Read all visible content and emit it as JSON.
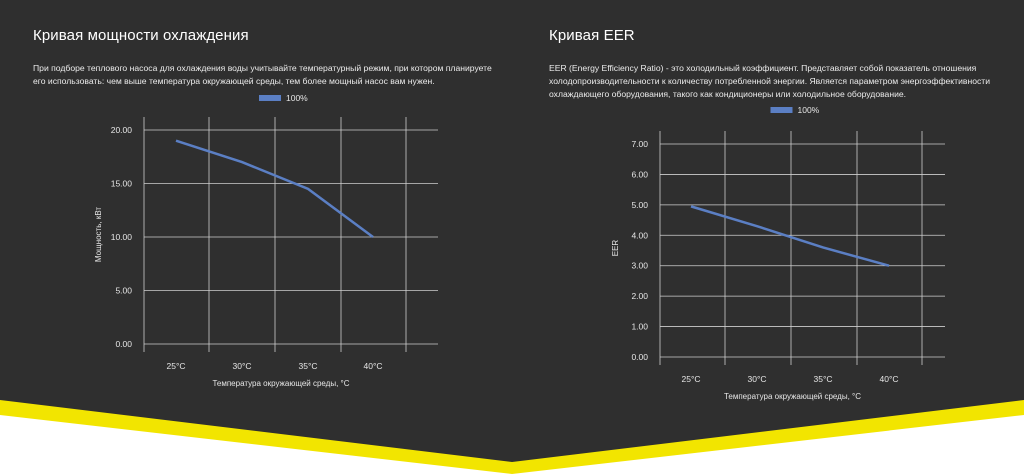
{
  "sections": [
    {
      "title": "Кривая мощности охлаждения",
      "description": "При подборе теплового насоса для охлаждения воды учитывайте температурный режим, при котором планируете его использовать: чем выше температура окружающей среды, тем более мощный насос вам нужен."
    },
    {
      "title": "Кривая EER",
      "description": "EER (Energy Efficiency Ratio) - это холодильный коэффициент. Представляет собой показатель отношения холодопроизводительности к количеству потребленной энергии. Является параметром энергоэффективности охлаждающего оборудования, такого как кондиционеры или холодильное оборудование."
    }
  ],
  "colors": {
    "panel_background": "#2f2f2f",
    "accent_yellow": "#f2e500",
    "series_line": "#5b7fc4",
    "grid": "#cfcfcf"
  },
  "chart_data": [
    {
      "type": "line",
      "categories": [
        "25°C",
        "30°C",
        "35°C",
        "40°C"
      ],
      "series": [
        {
          "name": "100%",
          "values": [
            19,
            17,
            14.5,
            10
          ]
        }
      ],
      "xlabel": "Температура окружающей среды, °C",
      "ylabel": "Мощность, кВт",
      "ylim": [
        0,
        20
      ],
      "yticks": [
        "0.00",
        "5.00",
        "10.00",
        "15.00",
        "20.00"
      ],
      "tick_values": [
        0,
        5,
        10,
        15,
        20
      ],
      "grid": true,
      "legend": "top"
    },
    {
      "type": "line",
      "categories": [
        "25°C",
        "30°C",
        "35°C",
        "40°C"
      ],
      "series": [
        {
          "name": "100%",
          "values": [
            4.95,
            4.3,
            3.6,
            3.0
          ]
        }
      ],
      "xlabel": "Температура окружающей среды, °C",
      "ylabel": "EER",
      "ylim": [
        0,
        7
      ],
      "yticks": [
        "0.00",
        "1.00",
        "2.00",
        "3.00",
        "4.00",
        "5.00",
        "6.00",
        "7.00"
      ],
      "tick_values": [
        0,
        1,
        2,
        3,
        4,
        5,
        6,
        7
      ],
      "grid": true,
      "legend": "top"
    }
  ]
}
